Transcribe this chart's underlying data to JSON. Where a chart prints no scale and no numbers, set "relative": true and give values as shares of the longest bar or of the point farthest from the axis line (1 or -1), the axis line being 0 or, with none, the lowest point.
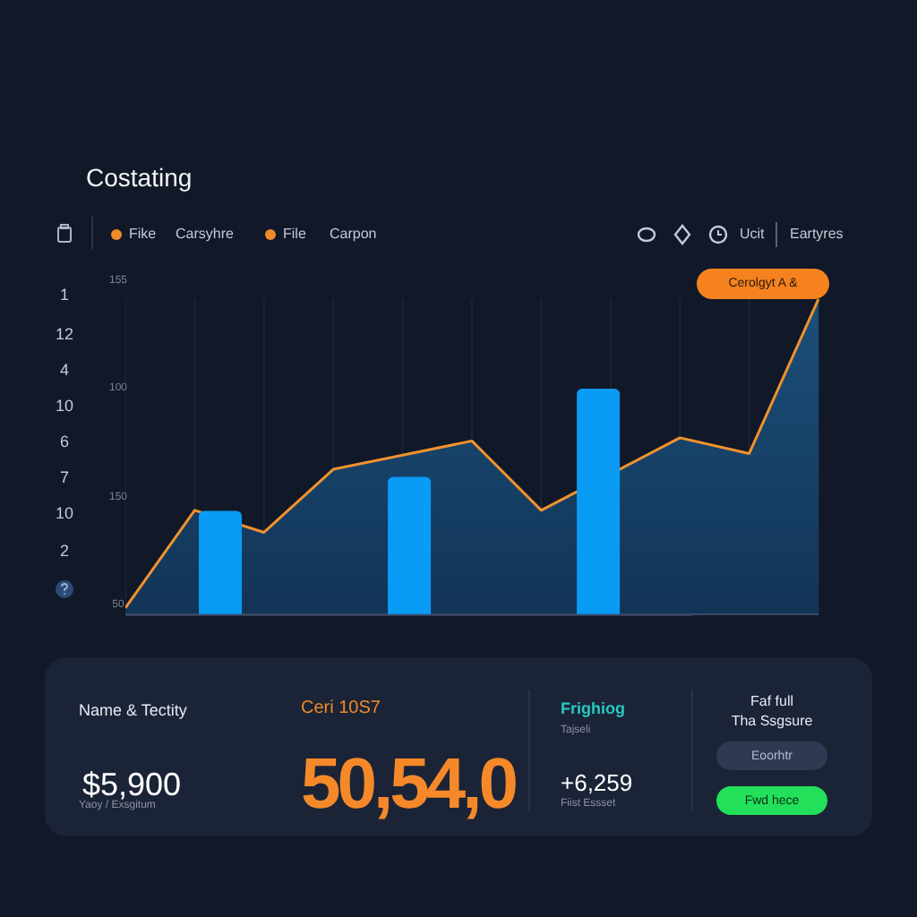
{
  "chart_data": [
    {
      "type": "area",
      "title": "Costating",
      "relative": true,
      "grid": "x",
      "color": "#f0922e",
      "categories": [
        null,
        null,
        null,
        null,
        null,
        null,
        null,
        null,
        null,
        null,
        null
      ],
      "values": [
        0.02,
        0.33,
        0.26,
        0.46,
        null,
        0.55,
        0.33,
        null,
        0.56,
        0.51,
        1
      ],
      "annotations": [
        "155",
        "100",
        "150",
        "50",
        "1",
        "12",
        "4",
        "10",
        "6",
        "7",
        "10",
        "2",
        "Fike",
        "Carsyhre",
        "File",
        "Carpon",
        "Ucit",
        "Eartyres",
        "Cerolgyt A &",
        "Name & Tectity",
        "$5,900",
        "Yaoy / Exsgitum",
        "Ceri 10S7",
        "50,54,0",
        "Frighiog",
        "Tajseli",
        "+6,259",
        "Fiist Essset",
        "Faf full",
        "Tha Ssgsure",
        "Eoorhtr",
        "Fwd hece"
      ]
    },
    {
      "type": "bar",
      "relative": true,
      "color": "#0a9bf5",
      "categories": [
        null,
        null,
        null
      ],
      "values": [
        0.46,
        0.61,
        1
      ]
    }
  ]
}
